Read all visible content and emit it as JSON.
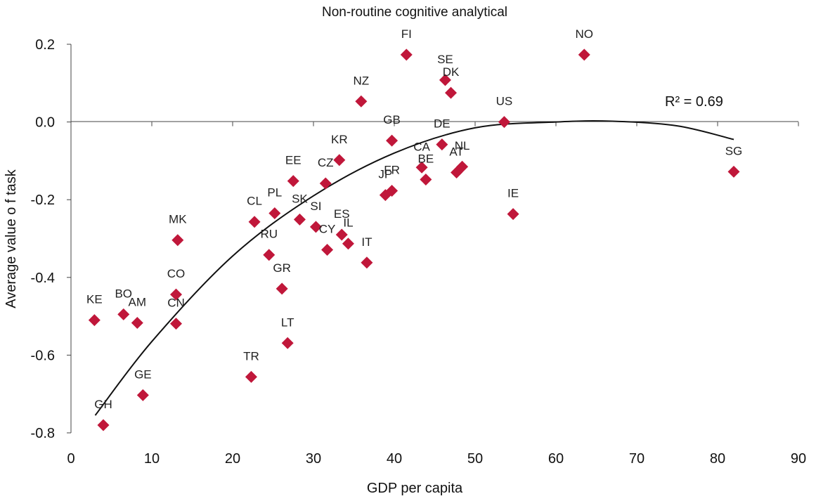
{
  "chart_data": {
    "type": "scatter",
    "title": "Non-routine cognitive analytical",
    "xlabel": "GDP per capita",
    "ylabel": "Average value o f task",
    "xlim": [
      0,
      90
    ],
    "ylim": [
      -0.8,
      0.2
    ],
    "x_ticks": [
      "0",
      "10",
      "20",
      "30",
      "40",
      "50",
      "60",
      "70",
      "80",
      "90"
    ],
    "y_ticks": [
      "0.2",
      "0.0",
      "-0.2",
      "-0.4",
      "-0.6",
      "-0.8"
    ],
    "marker_color": "#C0173A",
    "trendline": {
      "type": "polynomial-2",
      "label": "R² = 0.69",
      "points": [
        [
          3,
          -0.755
        ],
        [
          10,
          -0.565
        ],
        [
          20,
          -0.345
        ],
        [
          30,
          -0.19
        ],
        [
          40,
          -0.08
        ],
        [
          50,
          -0.015
        ],
        [
          60,
          0.0
        ],
        [
          67,
          0.002
        ],
        [
          75,
          -0.01
        ],
        [
          82,
          -0.045
        ]
      ]
    },
    "points": [
      {
        "label": "FI",
        "x": 41.5,
        "y": 0.173
      },
      {
        "label": "NO",
        "x": 63.5,
        "y": 0.173
      },
      {
        "label": "SE",
        "x": 46.3,
        "y": 0.108
      },
      {
        "label": "DK",
        "x": 47.0,
        "y": 0.075
      },
      {
        "label": "NZ",
        "x": 35.9,
        "y": 0.053
      },
      {
        "label": "US",
        "x": 53.6,
        "y": 0.0
      },
      {
        "label": "GB",
        "x": 39.7,
        "y": -0.048
      },
      {
        "label": "DE",
        "x": 45.9,
        "y": -0.058
      },
      {
        "label": "KR",
        "x": 33.2,
        "y": -0.098
      },
      {
        "label": "CA",
        "x": 43.4,
        "y": -0.117
      },
      {
        "label": "NL",
        "x": 48.4,
        "y": -0.115
      },
      {
        "label": "AT",
        "x": 47.7,
        "y": -0.13
      },
      {
        "label": "SG",
        "x": 82.0,
        "y": -0.128
      },
      {
        "label": "BE",
        "x": 43.9,
        "y": -0.148
      },
      {
        "label": "EE",
        "x": 27.5,
        "y": -0.152
      },
      {
        "label": "CZ",
        "x": 31.5,
        "y": -0.158
      },
      {
        "label": "FR",
        "x": 39.7,
        "y": -0.177
      },
      {
        "label": "JP",
        "x": 38.9,
        "y": -0.188
      },
      {
        "label": "PL",
        "x": 25.2,
        "y": -0.235
      },
      {
        "label": "IE",
        "x": 54.7,
        "y": -0.237
      },
      {
        "label": "SK",
        "x": 28.3,
        "y": -0.251
      },
      {
        "label": "CL",
        "x": 22.7,
        "y": -0.257
      },
      {
        "label": "SI",
        "x": 30.3,
        "y": -0.27
      },
      {
        "label": "ES",
        "x": 33.5,
        "y": -0.29
      },
      {
        "label": "MK",
        "x": 13.2,
        "y": -0.304
      },
      {
        "label": "IL",
        "x": 34.3,
        "y": -0.313
      },
      {
        "label": "CY",
        "x": 31.7,
        "y": -0.329
      },
      {
        "label": "RU",
        "x": 24.5,
        "y": -0.342
      },
      {
        "label": "IT",
        "x": 36.6,
        "y": -0.362
      },
      {
        "label": "GR",
        "x": 26.1,
        "y": -0.429
      },
      {
        "label": "CO",
        "x": 13.0,
        "y": -0.444
      },
      {
        "label": "BO",
        "x": 6.5,
        "y": -0.495
      },
      {
        "label": "KE",
        "x": 2.9,
        "y": -0.51
      },
      {
        "label": "AM",
        "x": 8.2,
        "y": -0.517
      },
      {
        "label": "CN",
        "x": 13.0,
        "y": -0.519
      },
      {
        "label": "LT",
        "x": 26.8,
        "y": -0.569
      },
      {
        "label": "TR",
        "x": 22.3,
        "y": -0.656
      },
      {
        "label": "GE",
        "x": 8.9,
        "y": -0.703
      },
      {
        "label": "GH",
        "x": 4.0,
        "y": -0.78
      }
    ]
  }
}
